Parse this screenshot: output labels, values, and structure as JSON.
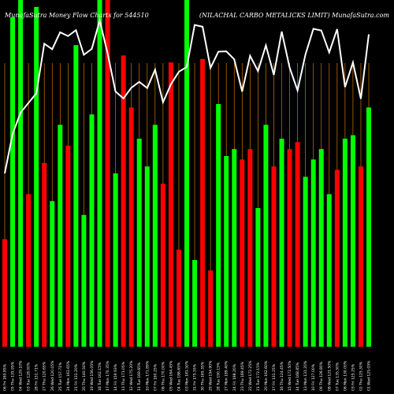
{
  "header": {
    "left": "MunafaSutra  Money Flow  Charts for 544510",
    "right": "(NILACHAL  CARBO METALICKS LIMIT) MunafaSutra.com"
  },
  "colors": {
    "background": "#000000",
    "up": "#00ff00",
    "down": "#ff0000",
    "line": "#ffffff",
    "grid": "#cc7a00"
  },
  "chart_data": {
    "type": "bar",
    "title": "MunafaSutra  Money Flow  Charts for 544510",
    "subtitle": "(NILACHAL  CARBO METALICKS LIMIT) MunafaSutra.com",
    "ylim": [
      0,
      100
    ],
    "grid": true,
    "categories": [
      "06 Fri 165.85%",
      "05 Thu 135.95%",
      "04 Wed 129.10%",
      "03 Tue 128.00%",
      "28 Fri 131.71%",
      "27 Thu 120.65%",
      "26 Wed 120.05%",
      "25 Tue 157.71%",
      "24 Mon 161.65%",
      "21 Fri 131.20%",
      "20 Thu 140.50%",
      "19 Wed 156.05%",
      "18 Tue 162.15%",
      "17 Mon 170.35%",
      "14 Fri 159.93%",
      "13 Thu 171.05%",
      "12 Wed 175.20%",
      "11 Tue 169.65%",
      "10 Mon 171.89%",
      "07 Fri 190.25%",
      "06 Thu 170.00%",
      "05 Wed 164.45%",
      "04 Tue 186.65%",
      "03 Mon 181.50%",
      "31 Fri 175.55%",
      "30 Thu 165.35%",
      "29 Wed 194.90%",
      "28 Tue 190.15%",
      "27 Mon 189.40%",
      "24 Fri 198.20%",
      "23 Thu 189.45%",
      "22 Wed 172.25%",
      "21 Tue 172.15%",
      "20 Mon 162.60%",
      "17 Fri 131.25%",
      "16 Thu 124.45%",
      "15 Wed 172.50%",
      "14 Tue 168.85%",
      "13 Mon 131.20%",
      "10 Fri 127.00%",
      "09 Thu 126.80%",
      "08 Wed 121.50%",
      "07 Tue 135.50%",
      "06 Mon 130.00%",
      "03 Fri 125.25%",
      "02 Thu 125.30%",
      "01 Wed 125.05%"
    ],
    "volume": [
      31,
      95,
      102,
      44,
      98,
      53,
      42,
      64,
      58,
      87,
      38,
      67,
      111,
      109,
      50,
      84,
      69,
      60,
      52,
      64,
      47,
      82,
      28,
      108,
      25,
      83,
      22,
      70,
      55,
      57,
      54,
      57,
      40,
      64,
      52,
      60,
      57,
      59,
      49,
      54,
      57,
      44,
      51,
      60,
      61,
      52,
      69
    ],
    "volume_direction": [
      "down",
      "up",
      "up",
      "down",
      "up",
      "down",
      "up",
      "up",
      "down",
      "up",
      "up",
      "up",
      "up",
      "down",
      "up",
      "down",
      "down",
      "up",
      "up",
      "up",
      "down",
      "down",
      "down",
      "up",
      "up",
      "down",
      "down",
      "up",
      "up",
      "up",
      "down",
      "down",
      "up",
      "up",
      "down",
      "up",
      "down",
      "down",
      "up",
      "up",
      "up",
      "up",
      "down",
      "up",
      "up",
      "down",
      "up"
    ],
    "price": [
      50,
      61.4,
      67.5,
      70.3,
      73.1,
      87.4,
      85.8,
      90.7,
      89.6,
      91.3,
      84.2,
      85.9,
      94.1,
      84.6,
      73.6,
      71.6,
      74.7,
      76.4,
      74.6,
      79.9,
      70.5,
      75.7,
      79.3,
      80.7,
      92.8,
      92.3,
      80.4,
      85.1,
      85.2,
      82.9,
      73.6,
      83.9,
      79.5,
      86.9,
      78.4,
      90.9,
      80.5,
      73.9,
      84.3,
      91.7,
      91.2,
      84.9,
      91.6,
      74.9,
      82.0,
      71.5,
      90.1
    ]
  }
}
